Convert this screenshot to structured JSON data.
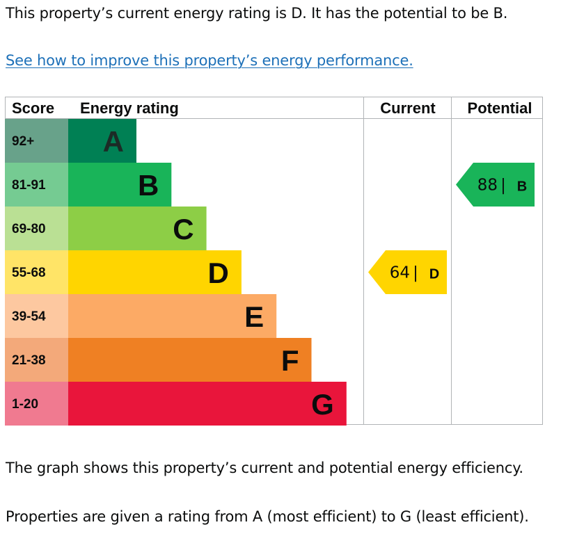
{
  "intro": {
    "text": "This property’s current energy rating is D. It has the potential to be B."
  },
  "improve_link": {
    "text": "See how to improve this property’s energy performance."
  },
  "chart_data": {
    "type": "bar",
    "headers": {
      "score": "Score",
      "rating": "Energy rating",
      "current": "Current",
      "potential": "Potential"
    },
    "bands": [
      {
        "letter": "A",
        "range": "92+",
        "color": "#008054",
        "score_bg": "#68a28a"
      },
      {
        "letter": "B",
        "range": "81-91",
        "color": "#19b459",
        "score_bg": "#75cb92"
      },
      {
        "letter": "C",
        "range": "69-80",
        "color": "#8dce46",
        "score_bg": "#bae094"
      },
      {
        "letter": "D",
        "range": "55-68",
        "color": "#ffd500",
        "score_bg": "#ffe467"
      },
      {
        "letter": "E",
        "range": "39-54",
        "color": "#fcaa65",
        "score_bg": "#fdc8a0"
      },
      {
        "letter": "F",
        "range": "21-38",
        "color": "#ef8023",
        "score_bg": "#f3a97a"
      },
      {
        "letter": "G",
        "range": "1-20",
        "color": "#e9153b",
        "score_bg": "#f07a90"
      }
    ],
    "current": {
      "score": "64",
      "letter": "D"
    },
    "potential": {
      "score": "88",
      "letter": "B"
    },
    "separator": "|"
  },
  "notes": {
    "graph": "The graph shows this property’s current and potential energy efficiency.",
    "scale": "Properties are given a rating from A (most efficient) to G (least efficient)."
  }
}
